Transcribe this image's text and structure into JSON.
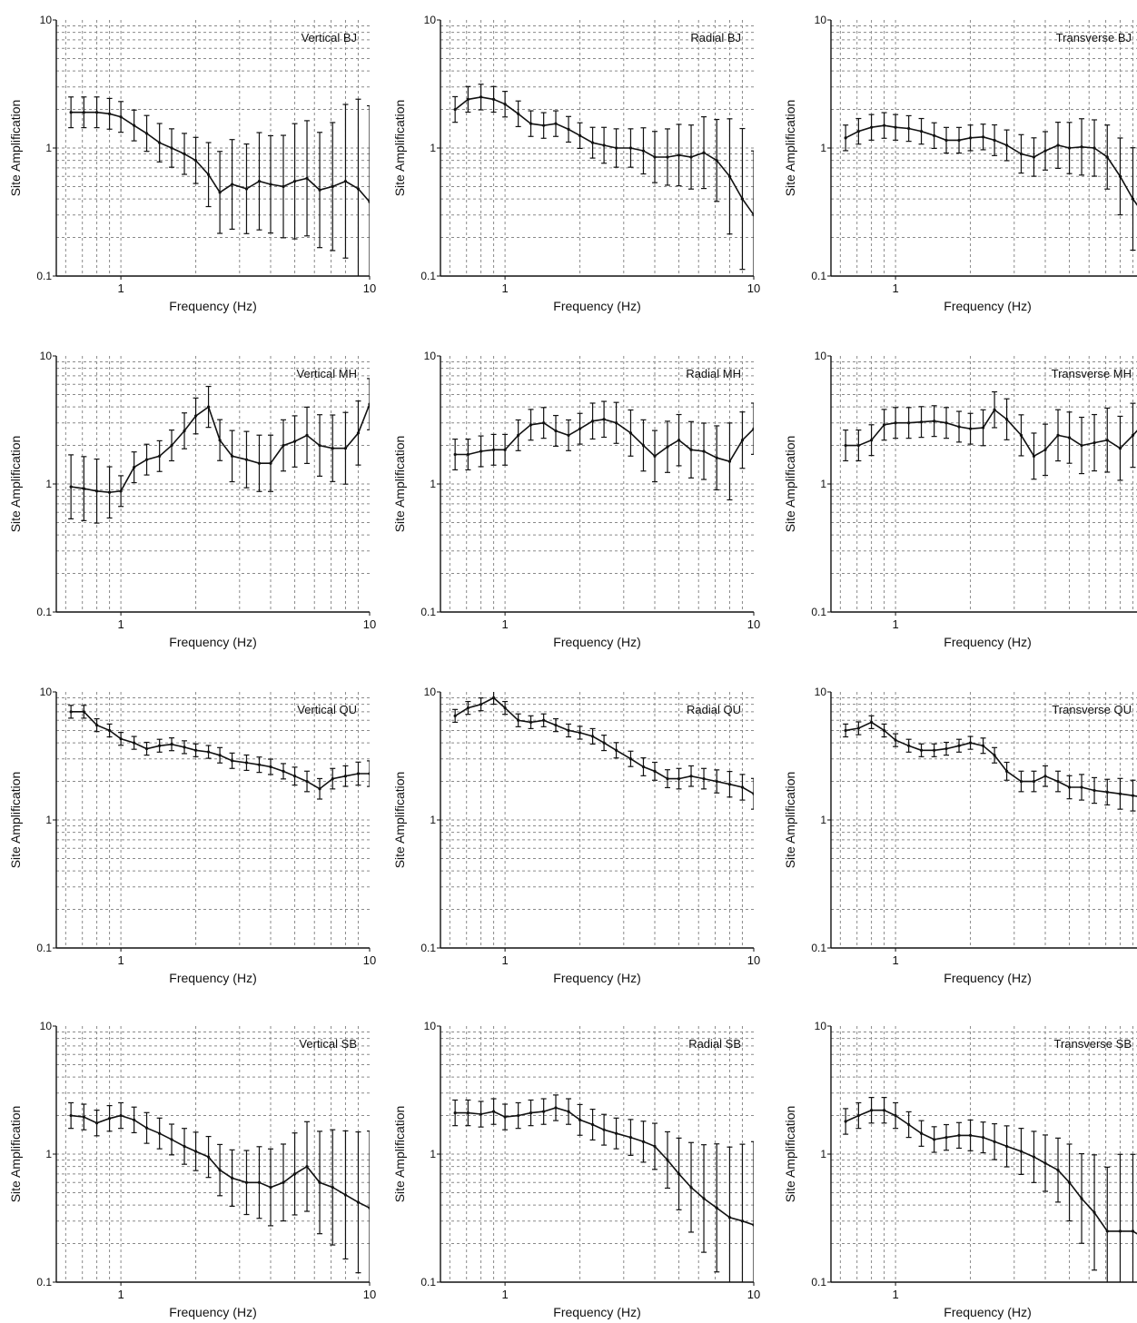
{
  "figure": {
    "x_tick_labels": [
      "1",
      "10"
    ],
    "y_tick_labels": [
      "0.1",
      "1",
      "10"
    ],
    "xlabel_default": "Frequency (Hz)",
    "xlabel_sb": "Frequency (Hz)",
    "ylabel": "Site Amplification"
  },
  "chart_data": [
    {
      "type": "line",
      "title": "Vertical BJ",
      "xlabel": "Frequency (Hz)",
      "ylabel": "Site Amplification",
      "x_scale": "log",
      "y_scale": "log",
      "xlim": [
        0.55,
        10
      ],
      "ylim": [
        0.1,
        10
      ],
      "grid": true,
      "error_bars": true,
      "title_position": "top-right",
      "x": [
        0.63,
        0.71,
        0.8,
        0.9,
        1.0,
        1.13,
        1.27,
        1.43,
        1.6,
        1.8,
        2.0,
        2.25,
        2.5,
        2.8,
        3.2,
        3.6,
        4.0,
        4.5,
        5.0,
        5.6,
        6.3,
        7.1,
        8.0,
        9.0,
        10.0
      ],
      "y": [
        1.9,
        1.9,
        1.9,
        1.85,
        1.75,
        1.5,
        1.3,
        1.1,
        1.0,
        0.9,
        0.8,
        0.62,
        0.45,
        0.52,
        0.48,
        0.55,
        0.52,
        0.5,
        0.55,
        0.58,
        0.47,
        0.5,
        0.55,
        0.48,
        0.38
      ],
      "err": [
        0.12,
        0.12,
        0.12,
        0.12,
        0.12,
        0.12,
        0.14,
        0.15,
        0.15,
        0.16,
        0.18,
        0.25,
        0.32,
        0.35,
        0.35,
        0.38,
        0.38,
        0.4,
        0.45,
        0.45,
        0.45,
        0.5,
        0.6,
        0.7,
        0.75
      ]
    },
    {
      "type": "line",
      "title": "Radial BJ",
      "xlabel": "Frequency (Hz)",
      "ylabel": "Site Amplification",
      "x_scale": "log",
      "y_scale": "log",
      "xlim": [
        0.55,
        10
      ],
      "ylim": [
        0.1,
        10
      ],
      "grid": true,
      "error_bars": true,
      "title_position": "top-right",
      "x": [
        0.63,
        0.71,
        0.8,
        0.9,
        1.0,
        1.13,
        1.27,
        1.43,
        1.6,
        1.8,
        2.0,
        2.25,
        2.5,
        2.8,
        3.2,
        3.6,
        4.0,
        4.5,
        5.0,
        5.6,
        6.3,
        7.1,
        8.0,
        9.0,
        10.0
      ],
      "y": [
        2.0,
        2.4,
        2.5,
        2.4,
        2.2,
        1.85,
        1.55,
        1.5,
        1.55,
        1.4,
        1.25,
        1.1,
        1.05,
        1.0,
        1.0,
        0.95,
        0.85,
        0.85,
        0.88,
        0.85,
        0.92,
        0.8,
        0.6,
        0.4,
        0.3
      ],
      "err": [
        0.1,
        0.1,
        0.1,
        0.1,
        0.1,
        0.1,
        0.1,
        0.1,
        0.1,
        0.1,
        0.1,
        0.12,
        0.14,
        0.15,
        0.15,
        0.18,
        0.2,
        0.22,
        0.24,
        0.25,
        0.28,
        0.32,
        0.45,
        0.55,
        0.5
      ]
    },
    {
      "type": "line",
      "title": "Transverse BJ",
      "xlabel": "Frequency (Hz)",
      "ylabel": "Site Amplification",
      "x_scale": "log",
      "y_scale": "log",
      "xlim": [
        0.55,
        10
      ],
      "ylim": [
        0.1,
        10
      ],
      "grid": true,
      "error_bars": true,
      "title_position": "top-right",
      "x": [
        0.63,
        0.71,
        0.8,
        0.9,
        1.0,
        1.13,
        1.27,
        1.43,
        1.6,
        1.8,
        2.0,
        2.25,
        2.5,
        2.8,
        3.2,
        3.6,
        4.0,
        4.5,
        5.0,
        5.6,
        6.3,
        7.1,
        8.0,
        9.0,
        10.0
      ],
      "y": [
        1.2,
        1.35,
        1.45,
        1.5,
        1.45,
        1.42,
        1.35,
        1.25,
        1.15,
        1.15,
        1.2,
        1.22,
        1.15,
        1.05,
        0.9,
        0.85,
        0.95,
        1.05,
        1.0,
        1.02,
        1.0,
        0.85,
        0.6,
        0.4,
        0.3
      ],
      "err": [
        0.1,
        0.1,
        0.1,
        0.1,
        0.1,
        0.1,
        0.1,
        0.1,
        0.1,
        0.1,
        0.1,
        0.1,
        0.12,
        0.12,
        0.15,
        0.15,
        0.15,
        0.18,
        0.2,
        0.22,
        0.22,
        0.25,
        0.3,
        0.4,
        0.45
      ]
    },
    {
      "type": "line",
      "title": "Vertical MH",
      "xlabel": "Frequency (Hz)",
      "ylabel": "Site Amplification",
      "x_scale": "log",
      "y_scale": "log",
      "xlim": [
        0.55,
        10
      ],
      "ylim": [
        0.1,
        10
      ],
      "grid": true,
      "error_bars": true,
      "title_position": "top-right",
      "x": [
        0.63,
        0.71,
        0.8,
        0.9,
        1.0,
        1.13,
        1.27,
        1.43,
        1.6,
        1.8,
        2.0,
        2.25,
        2.5,
        2.8,
        3.2,
        3.6,
        4.0,
        4.5,
        5.0,
        5.6,
        6.3,
        7.1,
        8.0,
        9.0,
        10.0
      ],
      "y": [
        0.95,
        0.92,
        0.88,
        0.86,
        0.88,
        1.35,
        1.55,
        1.65,
        2.0,
        2.6,
        3.4,
        4.0,
        2.2,
        1.65,
        1.55,
        1.45,
        1.45,
        2.0,
        2.15,
        2.4,
        2.0,
        1.9,
        1.9,
        2.5,
        4.2
      ],
      "err": [
        0.25,
        0.25,
        0.25,
        0.2,
        0.12,
        0.12,
        0.12,
        0.12,
        0.12,
        0.14,
        0.14,
        0.16,
        0.16,
        0.2,
        0.22,
        0.22,
        0.22,
        0.2,
        0.2,
        0.22,
        0.24,
        0.26,
        0.28,
        0.25,
        0.2
      ]
    },
    {
      "type": "line",
      "title": "Radial MH",
      "xlabel": "Frequency (Hz)",
      "ylabel": "Site Amplification",
      "x_scale": "log",
      "y_scale": "log",
      "xlim": [
        0.55,
        10
      ],
      "ylim": [
        0.1,
        10
      ],
      "grid": true,
      "error_bars": true,
      "title_position": "top-right",
      "x": [
        0.63,
        0.71,
        0.8,
        0.9,
        1.0,
        1.13,
        1.27,
        1.43,
        1.6,
        1.8,
        2.0,
        2.25,
        2.5,
        2.8,
        3.2,
        3.6,
        4.0,
        4.5,
        5.0,
        5.6,
        6.3,
        7.1,
        8.0,
        9.0,
        10.0
      ],
      "y": [
        1.7,
        1.7,
        1.8,
        1.85,
        1.85,
        2.4,
        2.9,
        3.0,
        2.6,
        2.4,
        2.7,
        3.1,
        3.2,
        3.0,
        2.5,
        2.0,
        1.65,
        1.95,
        2.2,
        1.85,
        1.8,
        1.6,
        1.5,
        2.2,
        2.7
      ],
      "err": [
        0.12,
        0.12,
        0.12,
        0.12,
        0.12,
        0.12,
        0.12,
        0.12,
        0.12,
        0.12,
        0.12,
        0.14,
        0.14,
        0.16,
        0.18,
        0.2,
        0.2,
        0.2,
        0.2,
        0.22,
        0.22,
        0.25,
        0.3,
        0.22,
        0.2
      ]
    },
    {
      "type": "line",
      "title": "Transverse MH",
      "xlabel": "Frequency (Hz)",
      "ylabel": "Site Amplification",
      "x_scale": "log",
      "y_scale": "log",
      "xlim": [
        0.55,
        10
      ],
      "ylim": [
        0.1,
        10
      ],
      "grid": true,
      "error_bars": true,
      "title_position": "top-right",
      "x": [
        0.63,
        0.71,
        0.8,
        0.9,
        1.0,
        1.13,
        1.27,
        1.43,
        1.6,
        1.8,
        2.0,
        2.25,
        2.5,
        2.8,
        3.2,
        3.6,
        4.0,
        4.5,
        5.0,
        5.6,
        6.3,
        7.1,
        8.0,
        9.0,
        10.0
      ],
      "y": [
        2.0,
        2.0,
        2.2,
        2.9,
        3.0,
        3.0,
        3.05,
        3.1,
        3.0,
        2.8,
        2.7,
        2.75,
        3.8,
        3.2,
        2.4,
        1.65,
        1.85,
        2.4,
        2.3,
        2.0,
        2.1,
        2.2,
        1.9,
        2.4,
        3.0
      ],
      "err": [
        0.12,
        0.12,
        0.12,
        0.12,
        0.12,
        0.12,
        0.12,
        0.12,
        0.12,
        0.12,
        0.12,
        0.14,
        0.14,
        0.16,
        0.16,
        0.18,
        0.2,
        0.2,
        0.2,
        0.22,
        0.22,
        0.25,
        0.25,
        0.25,
        0.22
      ]
    },
    {
      "type": "line",
      "title": "Vertical QU",
      "xlabel": "Frequency (Hz)",
      "ylabel": "Site Amplification",
      "x_scale": "log",
      "y_scale": "log",
      "xlim": [
        0.55,
        10
      ],
      "ylim": [
        0.1,
        10
      ],
      "grid": true,
      "error_bars": true,
      "title_position": "top-right",
      "x": [
        0.63,
        0.71,
        0.8,
        0.9,
        1.0,
        1.13,
        1.27,
        1.43,
        1.6,
        1.8,
        2.0,
        2.25,
        2.5,
        2.8,
        3.2,
        3.6,
        4.0,
        4.5,
        5.0,
        5.6,
        6.3,
        7.1,
        8.0,
        9.0,
        10.0
      ],
      "y": [
        7.0,
        7.0,
        5.5,
        5.0,
        4.3,
        4.0,
        3.6,
        3.8,
        3.9,
        3.7,
        3.5,
        3.4,
        3.2,
        2.9,
        2.8,
        2.7,
        2.6,
        2.4,
        2.2,
        2.0,
        1.75,
        2.1,
        2.2,
        2.3,
        2.3
      ],
      "err": [
        0.05,
        0.05,
        0.05,
        0.05,
        0.05,
        0.05,
        0.05,
        0.05,
        0.05,
        0.05,
        0.05,
        0.05,
        0.06,
        0.06,
        0.06,
        0.06,
        0.06,
        0.06,
        0.07,
        0.08,
        0.08,
        0.08,
        0.08,
        0.09,
        0.1
      ]
    },
    {
      "type": "line",
      "title": "Radial QU",
      "xlabel": "Frequency (Hz)",
      "ylabel": "Site Amplification",
      "x_scale": "log",
      "y_scale": "log",
      "xlim": [
        0.55,
        10
      ],
      "ylim": [
        0.1,
        10
      ],
      "grid": true,
      "error_bars": true,
      "title_position": "top-right",
      "x": [
        0.63,
        0.71,
        0.8,
        0.9,
        1.0,
        1.13,
        1.27,
        1.43,
        1.6,
        1.8,
        2.0,
        2.25,
        2.5,
        2.8,
        3.2,
        3.6,
        4.0,
        4.5,
        5.0,
        5.6,
        6.3,
        7.1,
        8.0,
        9.0,
        10.0
      ],
      "y": [
        6.5,
        7.5,
        8.0,
        9.0,
        7.5,
        6.0,
        5.8,
        6.0,
        5.5,
        5.0,
        4.8,
        4.5,
        4.0,
        3.5,
        3.0,
        2.6,
        2.4,
        2.1,
        2.1,
        2.2,
        2.1,
        2.0,
        1.9,
        1.8,
        1.6
      ],
      "err": [
        0.05,
        0.05,
        0.05,
        0.05,
        0.05,
        0.05,
        0.05,
        0.05,
        0.05,
        0.05,
        0.05,
        0.06,
        0.06,
        0.06,
        0.06,
        0.07,
        0.07,
        0.07,
        0.08,
        0.08,
        0.08,
        0.09,
        0.1,
        0.1,
        0.12
      ]
    },
    {
      "type": "line",
      "title": "Transverse QU",
      "xlabel": "Frequency (Hz)",
      "ylabel": "Site Amplification",
      "x_scale": "log",
      "y_scale": "log",
      "xlim": [
        0.55,
        10
      ],
      "ylim": [
        0.1,
        10
      ],
      "grid": true,
      "error_bars": true,
      "title_position": "top-right",
      "x": [
        0.63,
        0.71,
        0.8,
        0.9,
        1.0,
        1.13,
        1.27,
        1.43,
        1.6,
        1.8,
        2.0,
        2.25,
        2.5,
        2.8,
        3.2,
        3.6,
        4.0,
        4.5,
        5.0,
        5.6,
        6.3,
        7.1,
        8.0,
        9.0,
        10.0
      ],
      "y": [
        5.0,
        5.2,
        5.8,
        5.0,
        4.2,
        3.8,
        3.5,
        3.5,
        3.6,
        3.8,
        4.0,
        3.8,
        3.2,
        2.4,
        2.0,
        2.0,
        2.2,
        2.0,
        1.8,
        1.8,
        1.7,
        1.65,
        1.6,
        1.55,
        1.5
      ],
      "err": [
        0.05,
        0.05,
        0.05,
        0.05,
        0.05,
        0.05,
        0.05,
        0.05,
        0.05,
        0.05,
        0.05,
        0.06,
        0.06,
        0.07,
        0.08,
        0.08,
        0.08,
        0.08,
        0.09,
        0.1,
        0.1,
        0.1,
        0.12,
        0.12,
        0.12
      ]
    },
    {
      "type": "line",
      "title": "Vertical SB",
      "xlabel": "Frequency (Hz)",
      "ylabel": "Site Amplification",
      "x_scale": "log",
      "y_scale": "log",
      "xlim": [
        0.55,
        10
      ],
      "ylim": [
        0.1,
        10
      ],
      "grid": true,
      "error_bars": true,
      "title_position": "top-right",
      "x": [
        0.63,
        0.71,
        0.8,
        0.9,
        1.0,
        1.13,
        1.27,
        1.43,
        1.6,
        1.8,
        2.0,
        2.25,
        2.5,
        2.8,
        3.2,
        3.6,
        4.0,
        4.5,
        5.0,
        5.6,
        6.3,
        7.1,
        8.0,
        9.0,
        10.0
      ],
      "y": [
        2.0,
        1.95,
        1.75,
        1.9,
        2.0,
        1.85,
        1.6,
        1.45,
        1.3,
        1.15,
        1.05,
        0.95,
        0.75,
        0.65,
        0.6,
        0.6,
        0.55,
        0.6,
        0.7,
        0.8,
        0.6,
        0.55,
        0.48,
        0.42,
        0.38
      ],
      "err": [
        0.1,
        0.1,
        0.1,
        0.1,
        0.1,
        0.1,
        0.12,
        0.12,
        0.12,
        0.14,
        0.15,
        0.16,
        0.2,
        0.22,
        0.25,
        0.28,
        0.3,
        0.3,
        0.32,
        0.35,
        0.4,
        0.45,
        0.5,
        0.55,
        0.6
      ]
    },
    {
      "type": "line",
      "title": "Radial SB",
      "xlabel": "Frequency (Hz)",
      "ylabel": "Site Amplification",
      "x_scale": "log",
      "y_scale": "log",
      "xlim": [
        0.55,
        10
      ],
      "ylim": [
        0.1,
        10
      ],
      "grid": true,
      "error_bars": true,
      "title_position": "top-right",
      "x": [
        0.63,
        0.71,
        0.8,
        0.9,
        1.0,
        1.13,
        1.27,
        1.43,
        1.6,
        1.8,
        2.0,
        2.25,
        2.5,
        2.8,
        3.2,
        3.6,
        4.0,
        4.5,
        5.0,
        5.6,
        6.3,
        7.1,
        8.0,
        9.0,
        10.0
      ],
      "y": [
        2.1,
        2.1,
        2.05,
        2.15,
        1.95,
        2.0,
        2.1,
        2.15,
        2.3,
        2.15,
        1.85,
        1.7,
        1.55,
        1.45,
        1.35,
        1.25,
        1.15,
        0.9,
        0.7,
        0.55,
        0.45,
        0.38,
        0.32,
        0.3,
        0.28
      ],
      "err": [
        0.1,
        0.1,
        0.1,
        0.1,
        0.1,
        0.1,
        0.1,
        0.1,
        0.1,
        0.1,
        0.12,
        0.12,
        0.12,
        0.12,
        0.14,
        0.16,
        0.18,
        0.22,
        0.28,
        0.35,
        0.42,
        0.5,
        0.55,
        0.6,
        0.65
      ]
    },
    {
      "type": "line",
      "title": "Transverse SB",
      "xlabel": "Frequency (Hz)",
      "ylabel": "Site Amplification",
      "x_scale": "log",
      "y_scale": "log",
      "xlim": [
        0.55,
        10
      ],
      "ylim": [
        0.1,
        10
      ],
      "grid": true,
      "error_bars": true,
      "title_position": "top-right",
      "x": [
        0.63,
        0.71,
        0.8,
        0.9,
        1.0,
        1.13,
        1.27,
        1.43,
        1.6,
        1.8,
        2.0,
        2.25,
        2.5,
        2.8,
        3.2,
        3.6,
        4.0,
        4.5,
        5.0,
        5.6,
        6.3,
        7.1,
        8.0,
        9.0,
        10.0
      ],
      "y": [
        1.8,
        2.0,
        2.2,
        2.2,
        2.0,
        1.7,
        1.45,
        1.3,
        1.35,
        1.4,
        1.4,
        1.35,
        1.25,
        1.15,
        1.05,
        0.95,
        0.85,
        0.75,
        0.6,
        0.45,
        0.35,
        0.25,
        0.25,
        0.25,
        0.22
      ],
      "err": [
        0.1,
        0.1,
        0.1,
        0.1,
        0.1,
        0.1,
        0.1,
        0.1,
        0.1,
        0.1,
        0.12,
        0.12,
        0.14,
        0.16,
        0.18,
        0.2,
        0.22,
        0.25,
        0.3,
        0.35,
        0.45,
        0.5,
        0.6,
        0.6,
        0.6
      ]
    }
  ]
}
